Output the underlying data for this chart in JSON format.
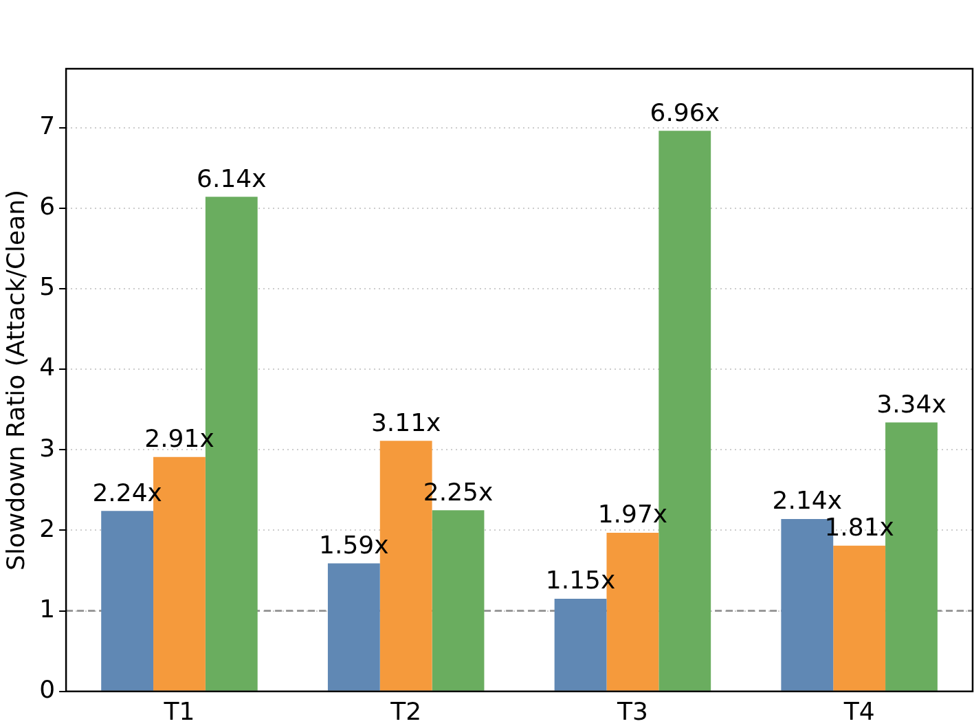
{
  "chart_data": {
    "type": "bar",
    "ylabel": "Slowdown Ratio (Attack/Clean)",
    "categories": [
      "T1",
      "T2",
      "T3",
      "T4"
    ],
    "series": [
      {
        "color": "#6088b4",
        "values": [
          2.24,
          1.59,
          1.15,
          2.14
        ],
        "value_labels": [
          "2.24x",
          "1.59x",
          "1.15x",
          "2.14x"
        ]
      },
      {
        "color": "#f59a3c",
        "values": [
          2.91,
          3.11,
          1.97,
          1.81
        ],
        "value_labels": [
          "2.91x",
          "3.11x",
          "1.97x",
          "1.81x"
        ]
      },
      {
        "color": "#6aad5f",
        "values": [
          6.14,
          2.25,
          6.96,
          3.34
        ],
        "value_labels": [
          "6.14x",
          "2.25x",
          "6.96x",
          "3.34x"
        ]
      }
    ],
    "ylim": [
      0,
      7.73
    ],
    "yticks": [
      0,
      1,
      2,
      3,
      4,
      5,
      6,
      7
    ],
    "grid": "y",
    "ref_lines": [
      {
        "axis": "y",
        "value": 1,
        "color": "#999999",
        "line_style": "dashed"
      }
    ]
  }
}
